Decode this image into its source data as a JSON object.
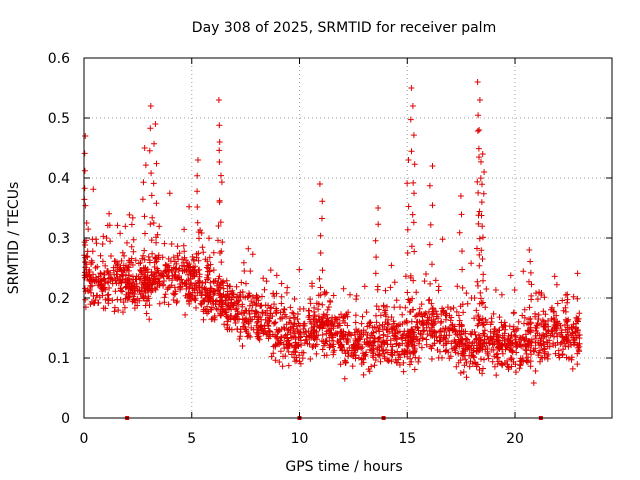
{
  "chart_data": {
    "type": "scatter",
    "title": "Day 308 of 2025, SRMTID for receiver palm",
    "xlabel": "GPS time / hours",
    "ylabel": "SRMTID / TECUs",
    "xlim": [
      0,
      24.5
    ],
    "ylim": [
      0,
      0.6
    ],
    "xticks": [
      0,
      5,
      10,
      15,
      20
    ],
    "yticks": [
      0,
      0.1,
      0.2,
      0.3,
      0.4,
      0.5,
      0.6
    ],
    "ytick_labels": [
      "0",
      "0.1",
      "0.2",
      "0.3",
      "0.4",
      "0.5",
      "0.6"
    ],
    "grid": true,
    "marker": "+",
    "series": [
      {
        "name": "SRMTID",
        "color": "#e00000",
        "trend": [
          {
            "x": 0,
            "y": 0.24
          },
          {
            "x": 1,
            "y": 0.22
          },
          {
            "x": 2,
            "y": 0.23
          },
          {
            "x": 3,
            "y": 0.22
          },
          {
            "x": 4,
            "y": 0.24
          },
          {
            "x": 5,
            "y": 0.23
          },
          {
            "x": 6,
            "y": 0.2
          },
          {
            "x": 7,
            "y": 0.18
          },
          {
            "x": 8,
            "y": 0.17
          },
          {
            "x": 9,
            "y": 0.14
          },
          {
            "x": 10,
            "y": 0.13
          },
          {
            "x": 11,
            "y": 0.16
          },
          {
            "x": 12,
            "y": 0.13
          },
          {
            "x": 13,
            "y": 0.12
          },
          {
            "x": 14,
            "y": 0.14
          },
          {
            "x": 15,
            "y": 0.12
          },
          {
            "x": 16,
            "y": 0.16
          },
          {
            "x": 17,
            "y": 0.14
          },
          {
            "x": 18,
            "y": 0.11
          },
          {
            "x": 19,
            "y": 0.13
          },
          {
            "x": 20,
            "y": 0.12
          },
          {
            "x": 21,
            "y": 0.13
          },
          {
            "x": 22,
            "y": 0.14
          },
          {
            "x": 23,
            "y": 0.14
          }
        ],
        "peaks": [
          {
            "x": 0.1,
            "y": 0.47
          },
          {
            "x": 2.8,
            "y": 0.45
          },
          {
            "x": 3.1,
            "y": 0.52
          },
          {
            "x": 3.3,
            "y": 0.49
          },
          {
            "x": 5.3,
            "y": 0.43
          },
          {
            "x": 6.3,
            "y": 0.53
          },
          {
            "x": 6.35,
            "y": 0.46
          },
          {
            "x": 11.0,
            "y": 0.39
          },
          {
            "x": 13.6,
            "y": 0.35
          },
          {
            "x": 15.2,
            "y": 0.55
          },
          {
            "x": 15.3,
            "y": 0.52
          },
          {
            "x": 15.0,
            "y": 0.43
          },
          {
            "x": 16.1,
            "y": 0.42
          },
          {
            "x": 17.5,
            "y": 0.37
          },
          {
            "x": 18.3,
            "y": 0.56
          },
          {
            "x": 18.35,
            "y": 0.53
          },
          {
            "x": 18.4,
            "y": 0.48
          },
          {
            "x": 18.45,
            "y": 0.44
          },
          {
            "x": 18.5,
            "y": 0.41
          },
          {
            "x": 20.7,
            "y": 0.28
          }
        ],
        "zeros": [
          2.0,
          10.0,
          13.9,
          21.2
        ]
      }
    ]
  }
}
